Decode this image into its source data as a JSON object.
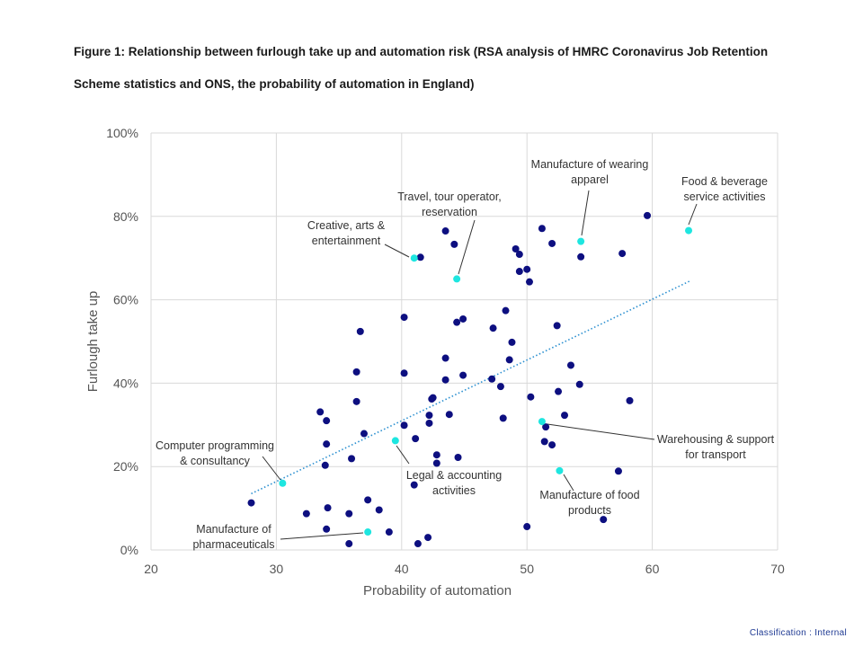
{
  "figure": {
    "title_line1": "Figure 1: Relationship between furlough take up and automation risk (RSA analysis of HMRC Coronavirus Job Retention",
    "title_line2": "Scheme statistics and ONS, the probability of automation in England)"
  },
  "footer": {
    "classification": "Classification : Internal"
  },
  "chart_data": {
    "type": "scatter",
    "title": "Figure 1: Relationship between furlough take up and automation risk (RSA analysis of HMRC Coronavirus Job Retention Scheme statistics and ONS, the probability of automation in England)",
    "xlabel": "Probability of automation",
    "ylabel": "Furlough take up",
    "xlim": [
      20,
      70
    ],
    "ylim": [
      0,
      100
    ],
    "x_ticks": [
      20,
      30,
      40,
      50,
      60,
      70
    ],
    "y_ticks": [
      0,
      20,
      40,
      60,
      80,
      100
    ],
    "x_tick_labels": [
      "20",
      "30",
      "40",
      "50",
      "60",
      "70"
    ],
    "y_tick_labels": [
      "0%",
      "20%",
      "40%",
      "60%",
      "80%",
      "100%"
    ],
    "grid": true,
    "colors": {
      "points": "#0d0f80",
      "highlight": "#1ee6e0",
      "trend": "#2a8fd0",
      "grid": "#d9d9d9"
    },
    "trendline": {
      "style": "dotted",
      "x": [
        28,
        63
      ],
      "y": [
        13.5,
        64.5
      ]
    },
    "points": [
      {
        "x": 28.0,
        "y": 11.3
      },
      {
        "x": 32.4,
        "y": 8.7
      },
      {
        "x": 33.5,
        "y": 33.1
      },
      {
        "x": 34.0,
        "y": 31.0
      },
      {
        "x": 34.0,
        "y": 25.4
      },
      {
        "x": 33.9,
        "y": 20.3
      },
      {
        "x": 34.1,
        "y": 10.1
      },
      {
        "x": 34.0,
        "y": 5.0
      },
      {
        "x": 35.8,
        "y": 8.7
      },
      {
        "x": 35.8,
        "y": 1.5
      },
      {
        "x": 36.0,
        "y": 21.9
      },
      {
        "x": 36.4,
        "y": 42.7
      },
      {
        "x": 36.4,
        "y": 35.6
      },
      {
        "x": 36.7,
        "y": 52.4
      },
      {
        "x": 37.0,
        "y": 27.9
      },
      {
        "x": 37.3,
        "y": 12.0
      },
      {
        "x": 38.2,
        "y": 9.6
      },
      {
        "x": 39.0,
        "y": 4.3
      },
      {
        "x": 40.2,
        "y": 55.8
      },
      {
        "x": 40.2,
        "y": 42.4
      },
      {
        "x": 40.2,
        "y": 29.9
      },
      {
        "x": 41.1,
        "y": 26.7
      },
      {
        "x": 41.0,
        "y": 15.6
      },
      {
        "x": 41.3,
        "y": 1.5
      },
      {
        "x": 41.5,
        "y": 70.2
      },
      {
        "x": 42.2,
        "y": 32.3
      },
      {
        "x": 42.2,
        "y": 30.4
      },
      {
        "x": 42.1,
        "y": 3.0
      },
      {
        "x": 42.4,
        "y": 36.2
      },
      {
        "x": 42.5,
        "y": 36.5
      },
      {
        "x": 42.8,
        "y": 22.8
      },
      {
        "x": 42.8,
        "y": 20.8
      },
      {
        "x": 43.5,
        "y": 76.5
      },
      {
        "x": 43.5,
        "y": 46.0
      },
      {
        "x": 43.5,
        "y": 40.8
      },
      {
        "x": 43.8,
        "y": 32.5
      },
      {
        "x": 44.2,
        "y": 73.3
      },
      {
        "x": 44.4,
        "y": 54.6
      },
      {
        "x": 44.5,
        "y": 22.2
      },
      {
        "x": 44.9,
        "y": 55.4
      },
      {
        "x": 44.9,
        "y": 41.9
      },
      {
        "x": 47.2,
        "y": 41.0
      },
      {
        "x": 47.3,
        "y": 53.2
      },
      {
        "x": 47.9,
        "y": 39.2
      },
      {
        "x": 48.1,
        "y": 31.6
      },
      {
        "x": 48.3,
        "y": 57.4
      },
      {
        "x": 48.6,
        "y": 45.6
      },
      {
        "x": 48.8,
        "y": 49.8
      },
      {
        "x": 49.1,
        "y": 72.2
      },
      {
        "x": 49.4,
        "y": 70.9
      },
      {
        "x": 49.4,
        "y": 66.8
      },
      {
        "x": 50.0,
        "y": 67.3
      },
      {
        "x": 50.2,
        "y": 64.3
      },
      {
        "x": 50.0,
        "y": 5.6
      },
      {
        "x": 50.3,
        "y": 36.7
      },
      {
        "x": 51.2,
        "y": 77.1
      },
      {
        "x": 51.5,
        "y": 29.5
      },
      {
        "x": 51.4,
        "y": 26.0
      },
      {
        "x": 52.0,
        "y": 73.5
      },
      {
        "x": 52.0,
        "y": 25.2
      },
      {
        "x": 52.4,
        "y": 53.8
      },
      {
        "x": 52.5,
        "y": 38.0
      },
      {
        "x": 53.0,
        "y": 32.3
      },
      {
        "x": 53.5,
        "y": 44.3
      },
      {
        "x": 54.2,
        "y": 39.7
      },
      {
        "x": 54.3,
        "y": 70.3
      },
      {
        "x": 56.1,
        "y": 7.3
      },
      {
        "x": 57.3,
        "y": 18.9
      },
      {
        "x": 57.6,
        "y": 71.1
      },
      {
        "x": 58.2,
        "y": 35.8
      },
      {
        "x": 59.6,
        "y": 80.2
      }
    ],
    "highlighted": [
      {
        "label": "Creative, arts & entertainment",
        "x": 41.0,
        "y": 70.0
      },
      {
        "label": "Travel, tour operator, reservation",
        "x": 44.4,
        "y": 65.0
      },
      {
        "label": "Manufacture of wearing apparel",
        "x": 54.3,
        "y": 74.0
      },
      {
        "label": "Food & beverage service activities",
        "x": 62.9,
        "y": 76.6
      },
      {
        "label": "Computer programming & consultancy",
        "x": 30.5,
        "y": 16.0
      },
      {
        "label": "Legal & accounting activities",
        "x": 39.5,
        "y": 26.2
      },
      {
        "label": "Warehousing & support for transport",
        "x": 51.2,
        "y": 30.8
      },
      {
        "label": "Manufacture of food products",
        "x": 52.6,
        "y": 19.0
      },
      {
        "label": "Manufacture of pharmaceuticals",
        "x": 37.3,
        "y": 4.3
      }
    ]
  }
}
